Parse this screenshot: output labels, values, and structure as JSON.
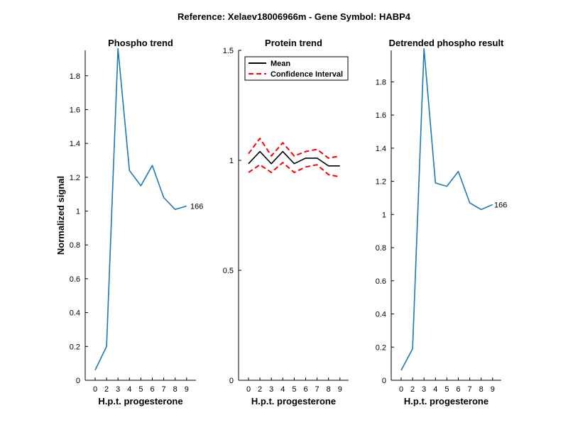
{
  "figure": {
    "suptitle": "Reference:  Xelaev18006966m - Gene Symbol:  HABP4"
  },
  "chart_data": [
    {
      "type": "line",
      "title": "Phospho trend",
      "xlabel": "H.p.t. progesterone",
      "ylabel": "Normalized signal",
      "x_ticks": [
        "0",
        "2",
        "3",
        "4",
        "5",
        "6",
        "7",
        "8",
        "9"
      ],
      "ylim": [
        0,
        1.95
      ],
      "y_ticks": [
        0,
        0.2,
        0.4,
        0.6,
        0.8,
        1,
        1.2,
        1.4,
        1.6,
        1.8
      ],
      "y_tick_labels": [
        "0",
        "0.2",
        "0.4",
        "0.6",
        "0.8",
        "1",
        "1.2",
        "1.4",
        "1.6",
        "1.8"
      ],
      "series": [
        {
          "color": "#1f77b4",
          "style": "solid",
          "values": [
            0.06,
            0.2,
            1.96,
            1.24,
            1.15,
            1.27,
            1.08,
            1.01,
            1.03
          ]
        }
      ],
      "annotation": "166"
    },
    {
      "type": "line",
      "title": "Protein trend",
      "xlabel": "H.p.t. progesterone",
      "ylabel": "",
      "x_ticks": [
        "0",
        "2",
        "3",
        "4",
        "5",
        "6",
        "7",
        "8",
        "9"
      ],
      "ylim": [
        0,
        1.5
      ],
      "y_ticks": [
        0,
        0.5,
        1,
        1.5
      ],
      "y_tick_labels": [
        "0",
        "0.5",
        "1",
        "1.5"
      ],
      "legend": {
        "position": "top-left",
        "entries": [
          "Mean",
          "Confidence Interval"
        ]
      },
      "series": [
        {
          "name": "Mean",
          "color": "#000000",
          "style": "solid",
          "values": [
            0.985,
            1.04,
            0.985,
            1.04,
            0.985,
            1.01,
            1.01,
            0.975,
            0.975
          ]
        },
        {
          "name": "Confidence Interval",
          "color": "#ff0000",
          "style": "dashed",
          "values": [
            1.03,
            1.1,
            1.02,
            1.08,
            1.02,
            1.04,
            1.05,
            1.01,
            1.02
          ]
        },
        {
          "name": "Confidence Interval",
          "color": "#ff0000",
          "style": "dashed",
          "values": [
            0.945,
            0.98,
            0.945,
            0.99,
            0.945,
            0.97,
            0.98,
            0.935,
            0.925
          ]
        }
      ]
    },
    {
      "type": "line",
      "title": "Detrended phospho result",
      "xlabel": "H.p.t. progesterone",
      "ylabel": "",
      "x_ticks": [
        "0",
        "2",
        "3",
        "4",
        "5",
        "6",
        "7",
        "8",
        "9"
      ],
      "ylim": [
        0,
        1.99
      ],
      "y_ticks": [
        0,
        0.2,
        0.4,
        0.6,
        0.8,
        1,
        1.2,
        1.4,
        1.6,
        1.8
      ],
      "y_tick_labels": [
        "0",
        "0.2",
        "0.4",
        "0.6",
        "0.8",
        "1",
        "1.2",
        "1.4",
        "1.6",
        "1.8"
      ],
      "series": [
        {
          "color": "#1f77b4",
          "style": "solid",
          "values": [
            0.06,
            0.19,
            2.0,
            1.19,
            1.17,
            1.26,
            1.07,
            1.03,
            1.06
          ]
        }
      ],
      "annotation": "166"
    }
  ]
}
